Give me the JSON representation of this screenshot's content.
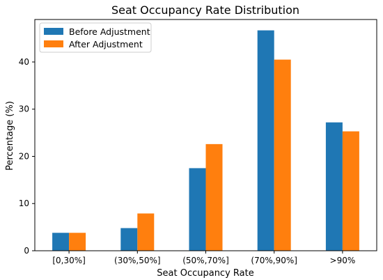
{
  "chart_data": {
    "type": "bar",
    "title": "Seat Occupancy Rate Distribution",
    "xlabel": "Seat Occupancy Rate",
    "ylabel": "Percentage (%)",
    "categories": [
      "[0,30%]",
      "(30%,50%]",
      "(50%,70%]",
      "(70%,90%]",
      ">90%"
    ],
    "series": [
      {
        "name": "Before Adjustment",
        "color": "#1f77b4",
        "values": [
          3.8,
          4.8,
          17.5,
          46.7,
          27.2
        ]
      },
      {
        "name": "After Adjustment",
        "color": "#ff7f0e",
        "values": [
          3.8,
          7.9,
          22.6,
          40.5,
          25.3
        ]
      }
    ],
    "ylim": [
      0,
      49
    ],
    "yticks": [
      0,
      10,
      20,
      30,
      40
    ],
    "legend_position": "top-left",
    "grid": false
  }
}
